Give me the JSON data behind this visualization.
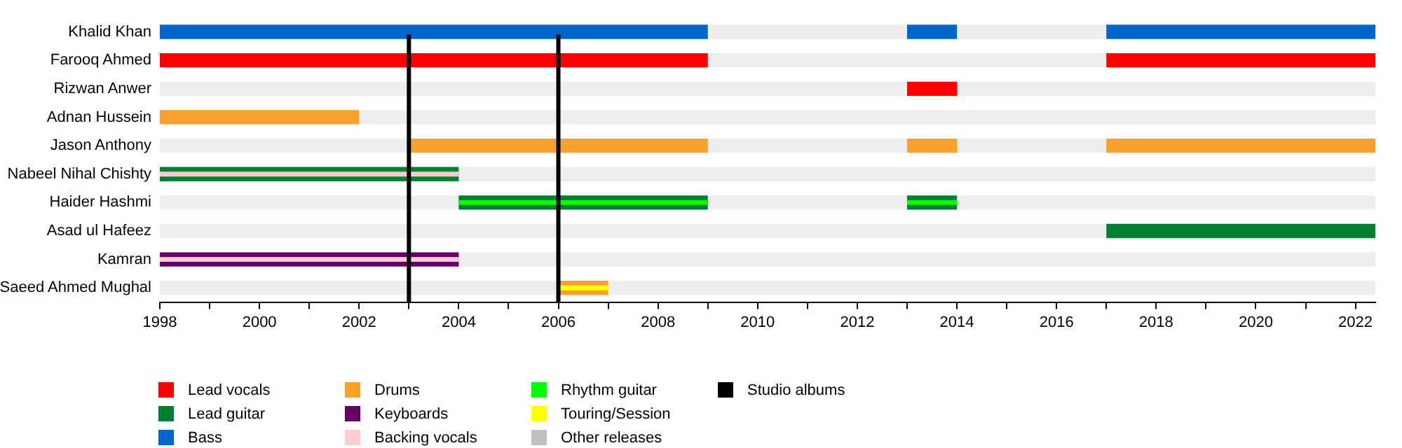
{
  "chart_data": {
    "type": "bar",
    "orientation": "horizontal",
    "legend": "bottom",
    "grid": false,
    "categories": [
      "Khalid Khan",
      "Farooq Ahmed",
      "Rizwan Anwer",
      "Adnan Hussein",
      "Jason Anthony",
      "Nabeel Nihal Chishty",
      "Haider Hashmi",
      "Asad ul Hafeez",
      "Kamran",
      "Saeed Ahmed Mughal"
    ],
    "xlim": [
      1998,
      2022.4
    ],
    "xticks": [
      1998,
      {
        "value": 1999,
        "label": null
      },
      2000,
      {
        "value": 2001,
        "label": null
      },
      2002,
      {
        "value": 2003,
        "label": null
      },
      2004,
      {
        "value": 2005,
        "label": null
      },
      2006,
      {
        "value": 2007,
        "label": null
      },
      2008,
      {
        "value": 2009,
        "label": null
      },
      2010,
      {
        "value": 2011,
        "label": null
      },
      2012,
      {
        "value": 2013,
        "label": null
      },
      2014,
      {
        "value": 2015,
        "label": null
      },
      2016,
      {
        "value": 2017,
        "label": null
      },
      2018,
      {
        "value": 2019,
        "label": null
      },
      2020,
      {
        "value": 2021,
        "label": null
      },
      2022
    ],
    "series": [
      {
        "color": "#eeeeee",
        "base": [
          null,
          null,
          1998,
          1998,
          null,
          1998,
          1998,
          null,
          1998,
          1998
        ],
        "values": [
          null,
          null,
          24.4,
          24.4,
          null,
          24.4,
          24.4,
          null,
          24.4,
          24.4
        ]
      },
      {
        "color": "#eeeeee",
        "base": [
          2009,
          2009,
          null,
          null,
          1998,
          null,
          null,
          1998,
          null,
          null
        ],
        "values": [
          4,
          8,
          null,
          null,
          5,
          null,
          null,
          19,
          null,
          null
        ]
      },
      {
        "color": "#eeeeee",
        "base": [
          2014,
          null,
          null,
          null,
          2009,
          null,
          null,
          null,
          null,
          null
        ],
        "values": [
          3,
          null,
          null,
          null,
          4,
          null,
          null,
          null,
          null,
          null
        ]
      },
      {
        "color": "#eeeeee",
        "base": [
          null,
          null,
          null,
          null,
          2014,
          null,
          null,
          null,
          null,
          null
        ],
        "values": [
          null,
          null,
          null,
          null,
          3,
          null,
          null,
          null,
          null,
          null
        ]
      },
      {
        "name": "Lead vocals",
        "color": "#ff0000",
        "base": [
          null,
          1998,
          2013,
          null,
          null,
          null,
          null,
          null,
          null,
          null
        ],
        "values": [
          null,
          11,
          1,
          null,
          null,
          null,
          null,
          null,
          null,
          null
        ]
      },
      {
        "color": "#ff0000",
        "base": [
          null,
          2017,
          null,
          null,
          null,
          null,
          null,
          null,
          null,
          null
        ],
        "values": [
          null,
          5.4,
          null,
          null,
          null,
          null,
          null,
          null,
          null,
          null
        ]
      },
      {
        "name": "Lead guitar",
        "color": "#008033",
        "base": [
          null,
          null,
          null,
          null,
          null,
          1998,
          2004,
          2017,
          null,
          null
        ],
        "values": [
          null,
          null,
          null,
          null,
          null,
          6,
          5,
          5.4,
          null,
          null
        ]
      },
      {
        "color": "#008033",
        "base": [
          null,
          null,
          null,
          null,
          null,
          null,
          2013,
          null,
          null,
          null
        ],
        "values": [
          null,
          null,
          null,
          null,
          null,
          null,
          1,
          null,
          null,
          null
        ]
      },
      {
        "name": "Bass",
        "color": "#0066cc",
        "base": [
          1998,
          null,
          null,
          null,
          null,
          null,
          null,
          null,
          null,
          null
        ],
        "values": [
          11,
          null,
          null,
          null,
          null,
          null,
          null,
          null,
          null,
          null
        ]
      },
      {
        "color": "#0066cc",
        "base": [
          2013,
          null,
          null,
          null,
          null,
          null,
          null,
          null,
          null,
          null
        ],
        "values": [
          1,
          null,
          null,
          null,
          null,
          null,
          null,
          null,
          null,
          null
        ]
      },
      {
        "color": "#0066cc",
        "base": [
          2017,
          null,
          null,
          null,
          null,
          null,
          null,
          null,
          null,
          null
        ],
        "values": [
          5.4,
          null,
          null,
          null,
          null,
          null,
          null,
          null,
          null,
          null
        ]
      },
      {
        "name": "Drums",
        "color": "#f9a12f",
        "base": [
          null,
          null,
          null,
          1998,
          2003,
          null,
          null,
          null,
          null,
          2006
        ],
        "values": [
          null,
          null,
          null,
          4,
          6,
          null,
          null,
          null,
          null,
          1
        ]
      },
      {
        "color": "#f9a12f",
        "base": [
          null,
          null,
          null,
          null,
          2013,
          null,
          null,
          null,
          null,
          null
        ],
        "values": [
          null,
          null,
          null,
          null,
          1,
          null,
          null,
          null,
          null,
          null
        ]
      },
      {
        "color": "#f9a12f",
        "base": [
          null,
          null,
          null,
          null,
          2017,
          null,
          null,
          null,
          null,
          null
        ],
        "values": [
          null,
          null,
          null,
          null,
          5.4,
          null,
          null,
          null,
          null,
          null
        ]
      },
      {
        "name": "Keyboards",
        "color": "#660066",
        "base": [
          null,
          null,
          null,
          null,
          null,
          null,
          null,
          null,
          1998,
          null
        ],
        "values": [
          null,
          null,
          null,
          null,
          null,
          null,
          null,
          null,
          6,
          null
        ]
      },
      {
        "name": "Backing vocals",
        "color": "#ffccd5",
        "base": [
          null,
          null,
          null,
          null,
          null,
          1998,
          null,
          null,
          1998,
          null
        ],
        "values": [
          null,
          null,
          null,
          null,
          null,
          6,
          null,
          null,
          6,
          null
        ]
      },
      {
        "name": "Rhythm guitar",
        "color": "#00ff00",
        "base": [
          null,
          null,
          null,
          null,
          null,
          null,
          2004,
          null,
          null,
          null
        ],
        "values": [
          null,
          null,
          null,
          null,
          null,
          null,
          5,
          null,
          null,
          null
        ]
      },
      {
        "color": "#00ff00",
        "base": [
          null,
          null,
          null,
          null,
          null,
          null,
          2013,
          null,
          null,
          null
        ],
        "values": [
          null,
          null,
          null,
          null,
          null,
          null,
          1,
          null,
          null,
          null
        ]
      },
      {
        "name": "Touring/Session",
        "color": "#ffff00",
        "base": [
          null,
          null,
          null,
          null,
          null,
          null,
          null,
          null,
          null,
          2006
        ],
        "values": [
          null,
          null,
          null,
          null,
          null,
          null,
          null,
          null,
          null,
          1
        ]
      },
      {
        "name": "Other releases",
        "color": "#c0c0c0",
        "base": [
          null,
          null,
          null,
          null,
          null,
          null,
          null,
          null,
          null,
          null
        ],
        "values": [
          null,
          null,
          null,
          null,
          null,
          null,
          null,
          null,
          null,
          null
        ]
      }
    ],
    "ref_lines": [
      {
        "axis": "x",
        "value": 2003,
        "label": "Studio albums",
        "color": "#000000"
      },
      {
        "axis": "x",
        "value": 2006,
        "color": "#000000"
      }
    ]
  }
}
